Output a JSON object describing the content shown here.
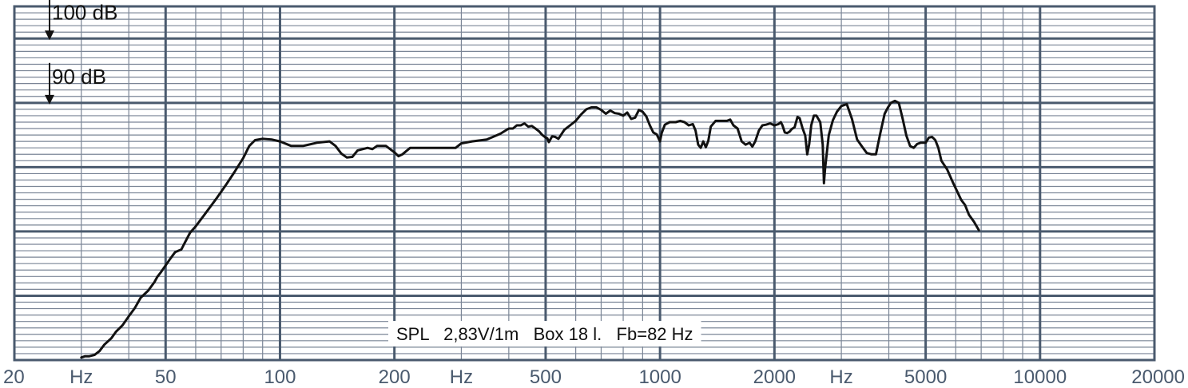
{
  "chart_data": {
    "type": "line",
    "x_scale": "log",
    "xlim": [
      20,
      20000
    ],
    "y_unit": "dB",
    "ylim": [
      50,
      105
    ],
    "grid": true,
    "x_tick_labels": [
      {
        "value": 20,
        "label": "20"
      },
      {
        "value": 30,
        "label": "Hz"
      },
      {
        "value": 50,
        "label": "50"
      },
      {
        "value": 100,
        "label": "100"
      },
      {
        "value": 200,
        "label": "200"
      },
      {
        "value": 300,
        "label": "Hz"
      },
      {
        "value": 500,
        "label": "500"
      },
      {
        "value": 1000,
        "label": "1000"
      },
      {
        "value": 2000,
        "label": "2000"
      },
      {
        "value": 3000,
        "label": "Hz"
      },
      {
        "value": 5000,
        "label": "5000"
      },
      {
        "value": 10000,
        "label": "10000"
      },
      {
        "value": 20000,
        "label": "20000"
      }
    ],
    "y_markers": [
      {
        "value": 100,
        "label": "100 dB"
      },
      {
        "value": 90,
        "label": "90 dB"
      }
    ],
    "annotation": "SPL   2,83V/1m   Box 18 l.   Fb=82 Hz",
    "series": [
      {
        "color": "#111111",
        "points": [
          [
            30,
            50.4
          ],
          [
            30.7,
            50.6
          ],
          [
            31.5,
            50.6
          ],
          [
            32.5,
            50.8
          ],
          [
            33.5,
            51.4
          ],
          [
            34.5,
            52.4
          ],
          [
            36,
            53.4
          ],
          [
            37,
            54.4
          ],
          [
            38.5,
            55.4
          ],
          [
            40,
            56.8
          ],
          [
            41.5,
            58.1
          ],
          [
            43,
            59.7
          ],
          [
            45,
            60.8
          ],
          [
            46.7,
            62.1
          ],
          [
            47.5,
            62.9
          ],
          [
            48.5,
            63.6
          ],
          [
            51.5,
            65.8
          ],
          [
            53,
            66.8
          ],
          [
            55,
            67.2
          ],
          [
            56,
            68.1
          ],
          [
            58,
            69.8
          ],
          [
            60,
            70.8
          ],
          [
            64,
            73.0
          ],
          [
            68,
            75.1
          ],
          [
            72,
            77.2
          ],
          [
            76,
            79.3
          ],
          [
            80,
            81.4
          ],
          [
            83,
            83.3
          ],
          [
            86,
            84.2
          ],
          [
            90,
            84.4
          ],
          [
            95,
            84.3
          ],
          [
            100,
            84.0
          ],
          [
            107,
            83.3
          ],
          [
            115,
            83.3
          ],
          [
            125,
            83.8
          ],
          [
            135,
            84.0
          ],
          [
            140,
            83.3
          ],
          [
            145,
            82.1
          ],
          [
            150,
            81.5
          ],
          [
            155,
            81.6
          ],
          [
            160,
            82.6
          ],
          [
            165,
            82.8
          ],
          [
            170,
            83.0
          ],
          [
            175,
            82.8
          ],
          [
            180,
            83.3
          ],
          [
            190,
            83.3
          ],
          [
            200,
            82.3
          ],
          [
            205,
            81.7
          ],
          [
            210,
            82.0
          ],
          [
            220,
            83.0
          ],
          [
            250,
            83.0
          ],
          [
            290,
            83.0
          ],
          [
            300,
            83.7
          ],
          [
            320,
            84.0
          ],
          [
            350,
            84.3
          ],
          [
            380,
            85.2
          ],
          [
            400,
            86.0
          ],
          [
            410,
            86.0
          ],
          [
            420,
            86.5
          ],
          [
            430,
            86.5
          ],
          [
            440,
            86.8
          ],
          [
            450,
            86.3
          ],
          [
            460,
            86.4
          ],
          [
            470,
            86.0
          ],
          [
            480,
            85.6
          ],
          [
            490,
            85.0
          ],
          [
            500,
            84.6
          ],
          [
            505,
            84.5
          ],
          [
            510,
            83.9
          ],
          [
            520,
            84.8
          ],
          [
            530,
            84.7
          ],
          [
            540,
            84.4
          ],
          [
            560,
            85.8
          ],
          [
            580,
            86.5
          ],
          [
            600,
            87.2
          ],
          [
            620,
            88.2
          ],
          [
            640,
            89.0
          ],
          [
            660,
            89.3
          ],
          [
            680,
            89.3
          ],
          [
            700,
            88.9
          ],
          [
            720,
            88.3
          ],
          [
            740,
            88.8
          ],
          [
            760,
            88.4
          ],
          [
            780,
            88.3
          ],
          [
            800,
            88.0
          ],
          [
            820,
            88.5
          ],
          [
            840,
            87.5
          ],
          [
            860,
            87.7
          ],
          [
            880,
            88.9
          ],
          [
            900,
            88.6
          ],
          [
            920,
            87.9
          ],
          [
            940,
            86.5
          ],
          [
            960,
            85.4
          ],
          [
            980,
            85.1
          ],
          [
            1000,
            84.0
          ],
          [
            1010,
            85.3
          ],
          [
            1030,
            86.6
          ],
          [
            1060,
            87.0
          ],
          [
            1100,
            87.0
          ],
          [
            1130,
            87.2
          ],
          [
            1160,
            87.0
          ],
          [
            1190,
            86.5
          ],
          [
            1220,
            86.7
          ],
          [
            1240,
            85.7
          ],
          [
            1260,
            83.5
          ],
          [
            1280,
            83.0
          ],
          [
            1300,
            84.0
          ],
          [
            1320,
            83.1
          ],
          [
            1340,
            84.1
          ],
          [
            1360,
            86.3
          ],
          [
            1400,
            87.2
          ],
          [
            1450,
            87.2
          ],
          [
            1500,
            87.2
          ],
          [
            1530,
            87.4
          ],
          [
            1560,
            86.5
          ],
          [
            1600,
            86.0
          ],
          [
            1640,
            84.0
          ],
          [
            1680,
            83.5
          ],
          [
            1720,
            83.8
          ],
          [
            1750,
            83.2
          ],
          [
            1780,
            84.0
          ],
          [
            1820,
            85.7
          ],
          [
            1860,
            86.5
          ],
          [
            1900,
            86.6
          ],
          [
            1950,
            86.8
          ],
          [
            2000,
            86.5
          ],
          [
            2050,
            86.7
          ],
          [
            2080,
            87.0
          ],
          [
            2100,
            86.5
          ],
          [
            2130,
            85.4
          ],
          [
            2160,
            85.3
          ],
          [
            2190,
            85.5
          ],
          [
            2220,
            85.9
          ],
          [
            2260,
            86.2
          ],
          [
            2300,
            87.8
          ],
          [
            2330,
            87.6
          ],
          [
            2370,
            86.1
          ],
          [
            2410,
            84.9
          ],
          [
            2440,
            82.0
          ],
          [
            2470,
            83.6
          ],
          [
            2500,
            86.5
          ],
          [
            2540,
            88.0
          ],
          [
            2580,
            88.0
          ],
          [
            2640,
            87.0
          ],
          [
            2680,
            83.5
          ],
          [
            2700,
            77.5
          ],
          [
            2720,
            80.0
          ],
          [
            2780,
            85.0
          ],
          [
            2850,
            87.3
          ],
          [
            2920,
            88.6
          ],
          [
            3000,
            89.5
          ],
          [
            3100,
            89.8
          ],
          [
            3200,
            87.5
          ],
          [
            3300,
            84.3
          ],
          [
            3400,
            83.2
          ],
          [
            3500,
            82.2
          ],
          [
            3600,
            82.0
          ],
          [
            3700,
            82.0
          ],
          [
            3800,
            85.3
          ],
          [
            3900,
            88.3
          ],
          [
            3980,
            89.3
          ],
          [
            4050,
            90.0
          ],
          [
            4150,
            90.3
          ],
          [
            4250,
            90.0
          ],
          [
            4350,
            87.5
          ],
          [
            4450,
            84.9
          ],
          [
            4550,
            83.3
          ],
          [
            4650,
            83.0
          ],
          [
            4750,
            83.6
          ],
          [
            4850,
            83.8
          ],
          [
            5000,
            83.8
          ],
          [
            5100,
            84.6
          ],
          [
            5200,
            84.7
          ],
          [
            5300,
            84.2
          ],
          [
            5400,
            83.0
          ],
          [
            5500,
            81.0
          ],
          [
            5700,
            79.6
          ],
          [
            5900,
            77.6
          ],
          [
            6100,
            75.8
          ],
          [
            6200,
            74.9
          ],
          [
            6350,
            74.1
          ],
          [
            6500,
            72.6
          ],
          [
            6700,
            71.5
          ],
          [
            6900,
            70.2
          ]
        ]
      }
    ]
  }
}
